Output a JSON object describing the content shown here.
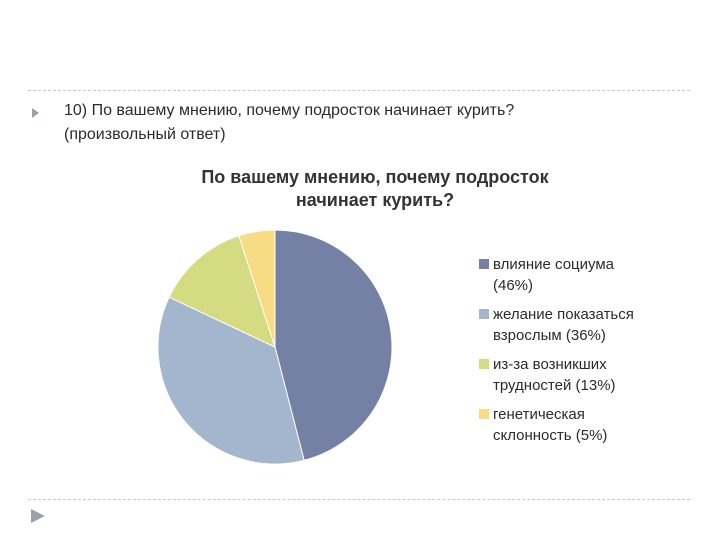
{
  "slide": {
    "question_line1": "10) По вашему мнению, почему подросток начинает курить?",
    "question_line2": "(произвольный ответ)",
    "bullet_icon": "triangle-bullet-icon",
    "corner_icon": "triangle-corner-icon"
  },
  "chart_data": {
    "type": "pie",
    "title_line1": "По вашему мнению, почему подросток",
    "title_line2": "начинает курить?",
    "legend_placement": "right",
    "slices": [
      {
        "label_line1": "влияние социума",
        "label_line2": "(46%)",
        "value": 46,
        "color": "#7580a5"
      },
      {
        "label_line1": "желание показаться",
        "label_line2": "взрослым (36%)",
        "value": 36,
        "color": "#a3b6cd"
      },
      {
        "label_line1": "из-за возникших",
        "label_line2": "трудностей (13%)",
        "value": 13,
        "color": "#d4db80"
      },
      {
        "label_line1": "генетическая",
        "label_line2": "склонность (5%)",
        "value": 5,
        "color": "#f8dc84"
      }
    ]
  }
}
